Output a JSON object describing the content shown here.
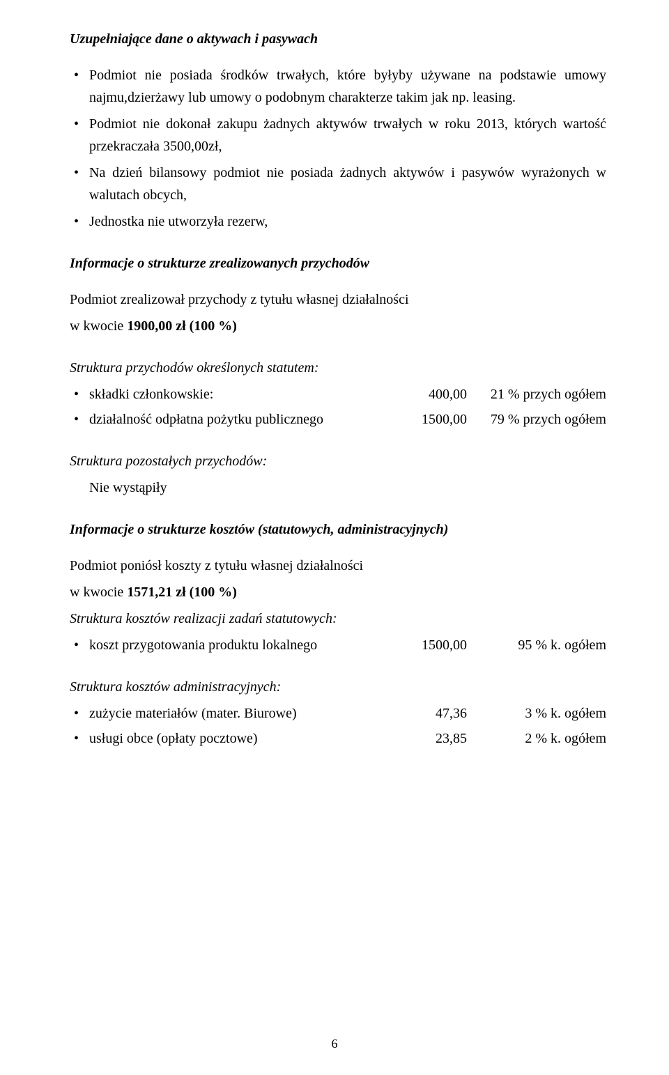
{
  "heading1": "Uzupełniające dane o aktywach i pasywach",
  "bullets1": {
    "b1": "Podmiot nie posiada środków trwałych, które byłyby używane na podstawie umowy najmu,dzierżawy lub umowy o podobnym charakterze takim jak np. leasing.",
    "b2": "Podmiot nie dokonał zakupu żadnych aktywów trwałych w roku 2013, których wartość przekraczała 3500,00zł,",
    "b3": "Na dzień bilansowy podmiot nie posiada żadnych aktywów i pasywów wyrażonych w walutach obcych,",
    "b4": "Jednostka nie utworzyła rezerw,"
  },
  "heading2": "Informacje o strukturze zrealizowanych przychodów",
  "block2": {
    "line1": "Podmiot zrealizował przychody z tytułu własnej działalności",
    "line2a": "w kwocie ",
    "line2b": "1900,00 zł (100 %)"
  },
  "heading3": "Struktura przychodów określonych statutem:",
  "rows3": {
    "r1": {
      "label": "składki członkowskie:",
      "v1": "400,00",
      "v2": "21 % przych ogółem"
    },
    "r2": {
      "label": "działalność odpłatna pożytku publicznego",
      "v1": "1500,00",
      "v2": "79 % przych ogółem"
    }
  },
  "heading4": "Struktura pozostałych przychodów:",
  "block4": {
    "line1": "Nie wystąpiły"
  },
  "heading5": "Informacje o strukturze kosztów (statutowych, administracyjnych)",
  "block5": {
    "line1": "Podmiot poniósł koszty z tytułu własnej działalności",
    "line2a": "w kwocie ",
    "line2b": "1571,21 zł (100 %)"
  },
  "heading6": "Struktura kosztów realizacji zadań statutowych:",
  "rows6": {
    "r1": {
      "label": "koszt przygotowania produktu lokalnego",
      "v1": "1500,00",
      "v2": "95 % k. ogółem"
    }
  },
  "heading7": "Struktura kosztów administracyjnych:",
  "rows7": {
    "r1": {
      "label": "zużycie materiałów (mater. Biurowe)",
      "v1": "47,36",
      "v2": "3 % k. ogółem"
    },
    "r2": {
      "label": "usługi obce (opłaty pocztowe)",
      "v1": "23,85",
      "v2": "2 % k. ogółem"
    }
  },
  "pageNumber": "6"
}
